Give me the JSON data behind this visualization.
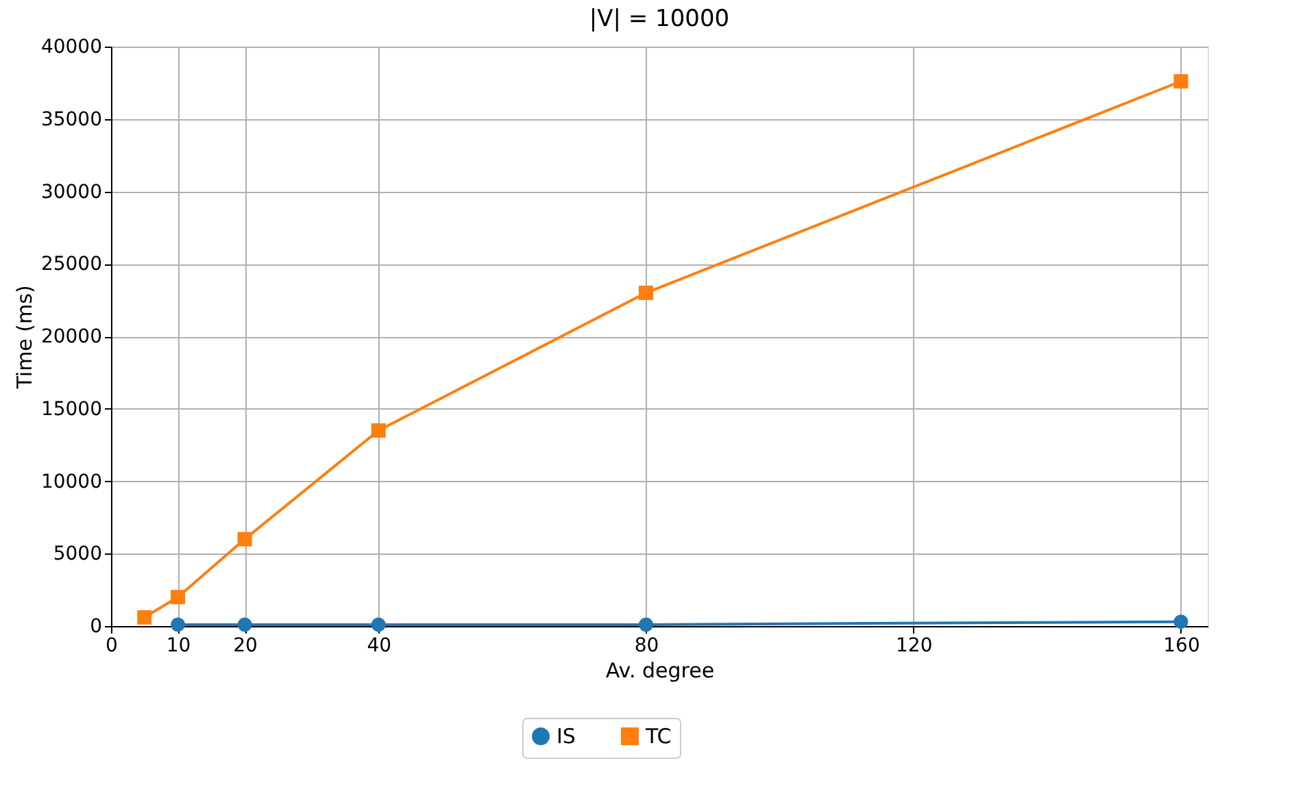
{
  "chart_data": {
    "type": "line",
    "title": "|V| = 10000",
    "xlabel": "Av. degree",
    "ylabel": "Time (ms)",
    "x": [
      5,
      10,
      20,
      40,
      80,
      160
    ],
    "series": [
      {
        "name": "IS",
        "color": "#1f77b4",
        "marker": "circle",
        "values": [
          null,
          100,
          100,
          100,
          100,
          300
        ]
      },
      {
        "name": "TC",
        "color": "#ff7f0e",
        "marker": "square",
        "values": [
          600,
          2000,
          6000,
          13500,
          23000,
          37600
        ]
      }
    ],
    "xlim": [
      0,
      164
    ],
    "xticks": [
      0,
      10,
      20,
      40,
      80,
      120,
      160
    ],
    "ylim": [
      0,
      40000
    ],
    "yticks": [
      0,
      5000,
      10000,
      15000,
      20000,
      25000,
      30000,
      35000,
      40000
    ],
    "grid": true,
    "legend": "bottom",
    "line_style": "solid"
  }
}
